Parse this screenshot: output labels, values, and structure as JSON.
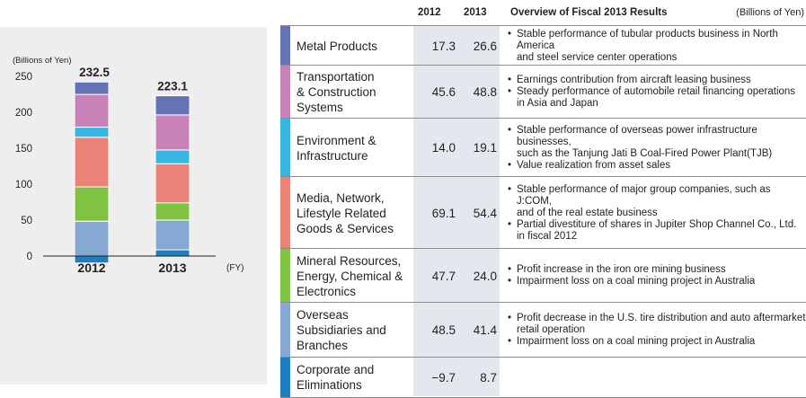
{
  "chart_data": {
    "type": "bar",
    "stacked": true,
    "categories": [
      "2012",
      "2013"
    ],
    "ylabel": "(Billions of Yen)",
    "xlabel": "(FY)",
    "ylim": [
      0,
      250
    ],
    "yticks": [
      0,
      50,
      100,
      150,
      200,
      250
    ],
    "totals": [
      "232.5",
      "223.1"
    ],
    "series": [
      {
        "name": "Corporate and Eliminations",
        "color": "#1d7ec2",
        "values": [
          -9.7,
          8.7
        ]
      },
      {
        "name": "Overseas Subsidiaries and Branches",
        "color": "#85a9d3",
        "values": [
          48.5,
          41.4
        ]
      },
      {
        "name": "Mineral Resources, Energy, Chemical & Electronics",
        "color": "#80c242",
        "values": [
          47.7,
          24.0
        ]
      },
      {
        "name": "Media, Network, Lifestyle Related Goods & Services",
        "color": "#ea8278",
        "values": [
          69.1,
          54.4
        ]
      },
      {
        "name": "Environment & Infrastructure",
        "color": "#37b6e2",
        "values": [
          14.0,
          19.1
        ]
      },
      {
        "name": "Transportation & Construction Systems",
        "color": "#c882b8",
        "values": [
          45.6,
          48.8
        ]
      },
      {
        "name": "Metal Products",
        "color": "#6473b5",
        "values": [
          17.3,
          26.6
        ]
      }
    ]
  },
  "table": {
    "headers": {
      "y2012": "2012",
      "y2013": "2013",
      "overview": "Overview of Fiscal 2013 Results",
      "unit": "(Billions of Yen)"
    },
    "rows": [
      {
        "name": "Metal Products",
        "color": "#6473b5",
        "v2012": "17.3",
        "v2013": "26.6",
        "bullets": [
          "Stable performance of tubular products business in North America\nand steel service center operations"
        ]
      },
      {
        "name": "Transportation\n& Construction\nSystems",
        "color": "#c882b8",
        "v2012": "45.6",
        "v2013": "48.8",
        "bullets": [
          "Earnings contribution from aircraft leasing business",
          "Steady performance of automobile retail financing operations in Asia and Japan"
        ]
      },
      {
        "name": "Environment &\nInfrastructure",
        "color": "#37b6e2",
        "v2012": "14.0",
        "v2013": "19.1",
        "bullets": [
          "Stable performance of overseas power infrastructure businesses,\nsuch as the Tanjung Jati B Coal-Fired Power Plant(TJB)",
          "Value realization from asset sales"
        ]
      },
      {
        "name": "Media, Network,\nLifestyle Related\nGoods & Services",
        "color": "#ea8278",
        "v2012": "69.1",
        "v2013": "54.4",
        "bullets": [
          "Stable performance of major group companies, such as J:COM,\nand of the real estate business",
          "Partial divestiture of shares in Jupiter Shop Channel Co., Ltd. in fiscal 2012"
        ]
      },
      {
        "name": "Mineral Resources,\nEnergy, Chemical &\nElectronics",
        "color": "#80c242",
        "v2012": "47.7",
        "v2013": "24.0",
        "bullets": [
          "Profit increase in the iron ore mining business",
          "Impairment loss on a coal mining project in Australia"
        ]
      },
      {
        "name": "Overseas\nSubsidiaries and\nBranches",
        "color": "#85a9d3",
        "v2012": "48.5",
        "v2013": "41.4",
        "bullets": [
          "Profit decrease in the U.S. tire distribution and auto aftermarket retail operation",
          "Impairment loss on a coal mining project in Australia"
        ]
      },
      {
        "name": "Corporate and\nEliminations",
        "color": "#1d7ec2",
        "v2012": "−9.7",
        "v2013": "8.7",
        "bullets": []
      }
    ]
  }
}
